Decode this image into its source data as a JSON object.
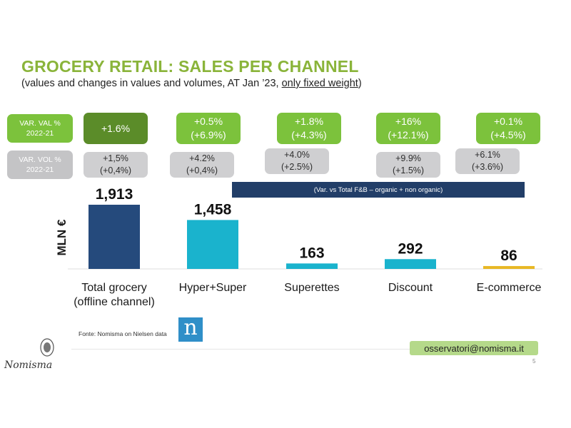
{
  "header": {
    "title": "GROCERY RETAIL: SALES PER CHANNEL",
    "subtitle_main": "(values and changes in values and volumes, AT Jan ’23, ",
    "subtitle_underlined": "only fixed weight",
    "subtitle_end": ")"
  },
  "legend_boxes": {
    "val_label": [
      "VAR. VAL %",
      "2022-21"
    ],
    "vol_label": [
      "VAR. VOL %",
      "2022-21"
    ]
  },
  "banner": "(Var. vs Total F&B – organic + non organic)",
  "chart_data": {
    "type": "bar",
    "ylabel": "MLN €",
    "categories": [
      "Total grocery (offline channel)",
      "Hyper+Super",
      "Superettes",
      "Discount",
      "E-commerce"
    ],
    "category_lines": [
      [
        "Total grocery",
        "(offline channel)"
      ],
      [
        "Hyper+Super"
      ],
      [
        "Superettes"
      ],
      [
        "Discount"
      ],
      [
        "E-commerce"
      ]
    ],
    "values": [
      1913,
      1458,
      163,
      292,
      86
    ],
    "value_labels": [
      "1,913",
      "1,458",
      "163",
      "292",
      "86"
    ],
    "bar_colors": [
      "#254a7c",
      "#1ab3cd",
      "#1ab3cd",
      "#1ab3cd",
      "#e8b825"
    ],
    "var_val": [
      [
        "+1.6%"
      ],
      [
        "+0.5%",
        "(+6.9%)"
      ],
      [
        "+1.8%",
        "(+4.3%)"
      ],
      [
        "+16%",
        "(+12.1%)"
      ],
      [
        "+0.1%",
        "(+4.5%)"
      ]
    ],
    "var_vol": [
      [
        "+1,5%",
        "(+0,4%)"
      ],
      [
        "+4.2%",
        "(+0,4%)"
      ],
      [
        "+4.0%",
        "(+2.5%)"
      ],
      [
        "+9.9%",
        "(+1.5%)"
      ],
      [
        "+6.1%",
        "(+3.6%)"
      ]
    ]
  },
  "footer": {
    "source": "Fonte: Nomisma on Nielsen data",
    "logo_letter": "n",
    "email": "osservatori@nomisma.it",
    "page_number": "5",
    "brand": "Nomisma"
  },
  "colors": {
    "title_green": "#8ab43a",
    "val_box_dark": "#5b8c29",
    "val_box": "#7cc23c",
    "vol_box": "#cfcfd1",
    "banner": "#223e68"
  }
}
